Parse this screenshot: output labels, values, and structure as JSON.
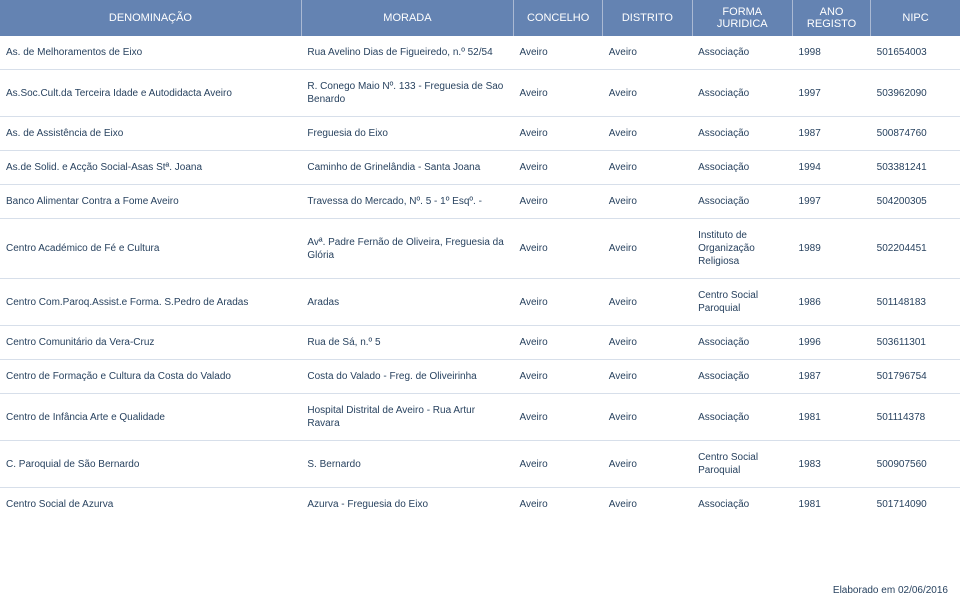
{
  "headers": {
    "denominacao": "DENOMINAÇÃO",
    "morada": "MORADA",
    "concelho": "CONCELHO",
    "distrito": "DISTRITO",
    "forma": "FORMA JURIDICA",
    "ano": "ANO REGISTO",
    "nipc": "NIPC"
  },
  "rows": [
    {
      "denom": "As. de Melhoramentos de Eixo",
      "morada": "Rua Avelino Dias de Figueiredo, n.º 52/54",
      "concelho": "Aveiro",
      "distrito": "Aveiro",
      "forma": "Associação",
      "ano": "1998",
      "nipc": "501654003"
    },
    {
      "denom": "As.Soc.Cult.da Terceira Idade e Autodidacta Aveiro",
      "morada": "R. Conego Maio Nº. 133 - Freguesia de Sao Benardo",
      "concelho": "Aveiro",
      "distrito": "Aveiro",
      "forma": "Associação",
      "ano": "1997",
      "nipc": "503962090"
    },
    {
      "denom": "As. de Assistência de Eixo",
      "morada": "Freguesia do Eixo",
      "concelho": "Aveiro",
      "distrito": "Aveiro",
      "forma": "Associação",
      "ano": "1987",
      "nipc": "500874760"
    },
    {
      "denom": "As.de Solid. e Acção Social-Asas Stª. Joana",
      "morada": "Caminho de Grinelândia - Santa Joana",
      "concelho": "Aveiro",
      "distrito": "Aveiro",
      "forma": "Associação",
      "ano": "1994",
      "nipc": "503381241"
    },
    {
      "denom": "Banco Alimentar Contra a Fome Aveiro",
      "morada": "Travessa do Mercado, Nº. 5 - 1º Esqº. -",
      "concelho": "Aveiro",
      "distrito": "Aveiro",
      "forma": "Associação",
      "ano": "1997",
      "nipc": "504200305"
    },
    {
      "denom": "Centro Académico de Fé e Cultura",
      "morada": "Avª. Padre Fernão de Oliveira, Freguesia da Glória",
      "concelho": "Aveiro",
      "distrito": "Aveiro",
      "forma": "Instituto de Organização Religiosa",
      "ano": "1989",
      "nipc": "502204451"
    },
    {
      "denom": "Centro Com.Paroq.Assist.e Forma. S.Pedro de Aradas",
      "morada": "Aradas",
      "concelho": "Aveiro",
      "distrito": "Aveiro",
      "forma": "Centro Social Paroquial",
      "ano": "1986",
      "nipc": "501148183"
    },
    {
      "denom": "Centro Comunitário da Vera-Cruz",
      "morada": "Rua de Sá, n.º 5",
      "concelho": "Aveiro",
      "distrito": "Aveiro",
      "forma": "Associação",
      "ano": "1996",
      "nipc": "503611301"
    },
    {
      "denom": "Centro de Formação e Cultura da Costa do Valado",
      "morada": "Costa do Valado - Freg. de Oliveirinha",
      "concelho": "Aveiro",
      "distrito": "Aveiro",
      "forma": "Associação",
      "ano": "1987",
      "nipc": "501796754"
    },
    {
      "denom": "Centro de Infância Arte e Qualidade",
      "morada": "Hospital Distrital de Aveiro - Rua Artur Ravara",
      "concelho": "Aveiro",
      "distrito": "Aveiro",
      "forma": "Associação",
      "ano": "1981",
      "nipc": "501114378"
    },
    {
      "denom": "C. Paroquial de São Bernardo",
      "morada": "S. Bernardo",
      "concelho": "Aveiro",
      "distrito": "Aveiro",
      "forma": "Centro Social Paroquial",
      "ano": "1983",
      "nipc": "500907560"
    },
    {
      "denom": "Centro Social de Azurva",
      "morada": "Azurva  - Freguesia do Eixo",
      "concelho": "Aveiro",
      "distrito": "Aveiro",
      "forma": "Associação",
      "ano": "1981",
      "nipc": "501714090"
    }
  ],
  "footer": "Elaborado em 02/06/2016",
  "colors": {
    "header_bg": "#6483b2",
    "header_text": "#ffffff",
    "body_text": "#28425f",
    "row_border": "#d7dfea",
    "header_border": "#aab9d3"
  },
  "font_sizes": {
    "header": 11,
    "body": 10,
    "footer": 10
  }
}
